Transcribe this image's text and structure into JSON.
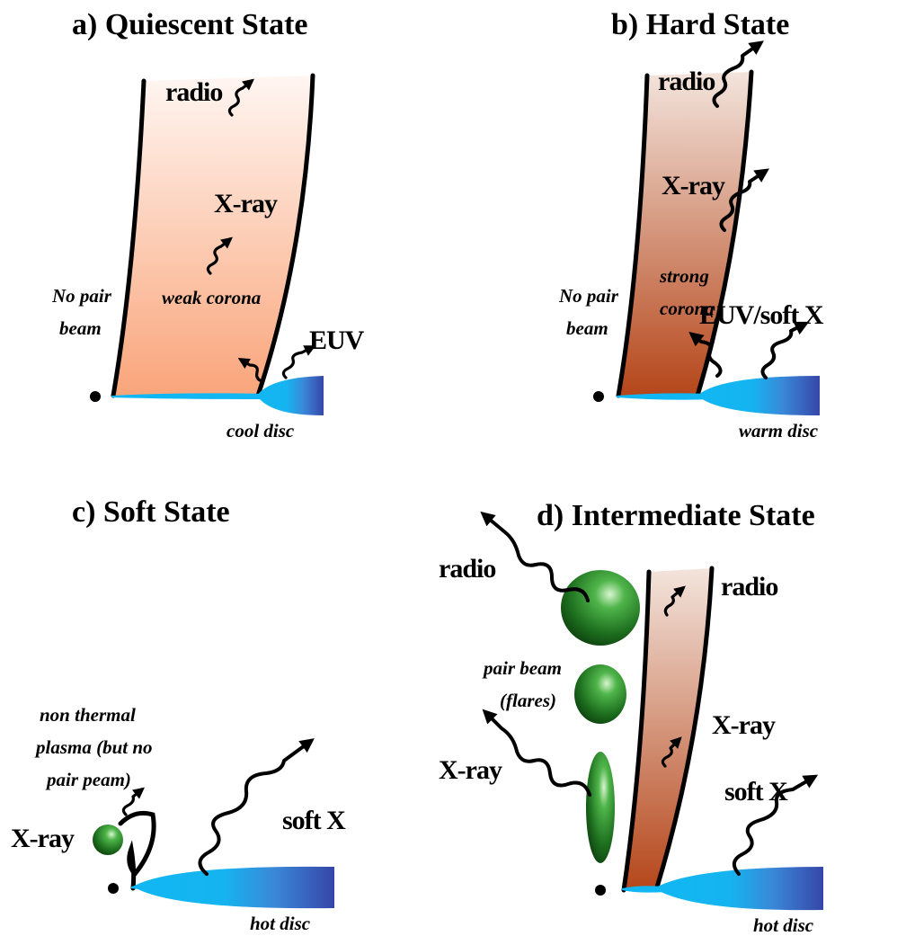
{
  "panels": {
    "a": {
      "title": "a) Quiescent State",
      "radio": "radio",
      "xray": "X-ray",
      "weak_corona": "weak corona",
      "no_pair_1": "No pair",
      "no_pair_2": "beam",
      "euv": "EUV",
      "disc": "cool disc"
    },
    "b": {
      "title": "b) Hard State",
      "radio": "radio",
      "xray": "X-ray",
      "strong_1": "strong",
      "strong_2": "corona",
      "no_pair_1": "No pair",
      "no_pair_2": "beam",
      "euv": "EUV/soft X",
      "disc": "warm disc"
    },
    "c": {
      "title": "c)  Soft State",
      "nonthermal_1": "non thermal",
      "nonthermal_2": "plasma (but no",
      "nonthermal_3": "pair peam)",
      "xray": "X-ray",
      "softx": "soft X",
      "disc": "hot disc"
    },
    "d": {
      "title": "d) Intermediate State",
      "radio_left": "radio",
      "radio_right": "radio",
      "pair_1": "pair beam",
      "pair_2": "(flares)",
      "xray_left": "X-ray",
      "xray_right": "X-ray",
      "softx": "soft X",
      "disc": "hot disc"
    }
  },
  "colors": {
    "jet_light_top": "#fff6f2",
    "jet_light_bottom": "#f9a57a",
    "jet_dark_top": "#f3e4dc",
    "jet_dark_bottom": "#b5461a",
    "disc_light": "#11b7f2",
    "disc_dark": "#3646a8",
    "blob_green": "#2e8b2e"
  }
}
